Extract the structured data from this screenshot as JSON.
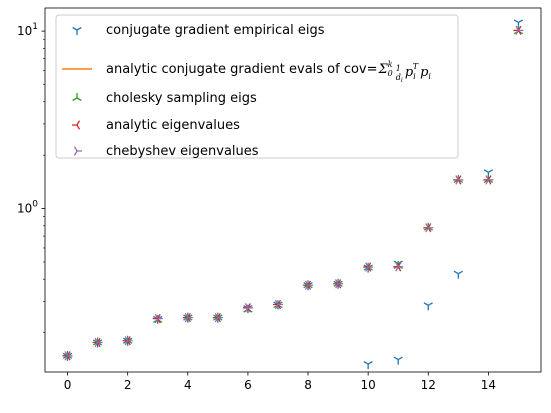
{
  "chart_data": {
    "type": "scatter",
    "title": "",
    "xlabel": "",
    "ylabel": "",
    "xscale": "linear",
    "yscale": "log",
    "xlim": [
      -0.75,
      15.75
    ],
    "ylim": [
      0.12,
      13.5
    ],
    "xticks": [
      0,
      2,
      4,
      6,
      8,
      10,
      12,
      14
    ],
    "xtick_labels": [
      "0",
      "2",
      "4",
      "6",
      "8",
      "10",
      "12",
      "14"
    ],
    "yticks": [
      1,
      10
    ],
    "ytick_labels": [
      "10^0",
      "10^1"
    ],
    "legend_position": "top-left",
    "grid": false,
    "series": [
      {
        "name": "conjugate gradient empirical eigs",
        "marker": "tri_down",
        "color": "#1f77b4",
        "x": [
          0,
          1,
          2,
          3,
          4,
          5,
          6,
          7,
          8,
          9,
          10,
          11,
          12,
          13,
          14,
          15
        ],
        "y": [
          0.148,
          0.176,
          0.18,
          0.239,
          0.243,
          0.243,
          0.275,
          0.288,
          0.37,
          0.377,
          0.465,
          0.49,
          0.285,
          0.43,
          1.6,
          11.2
        ]
      },
      {
        "name": "analytic conjugate gradient evals of cov=Σ_0^k (1/d_i) p_i^T p_i",
        "marker": "line",
        "color": "#ff7f0e",
        "x": [],
        "y": []
      },
      {
        "name": "cholesky sampling eigs",
        "marker": "tri_up",
        "color": "#2ca02c",
        "x": [
          0,
          1,
          2,
          3,
          4,
          5,
          6,
          7,
          8,
          9,
          10,
          11,
          12,
          13,
          14,
          15
        ],
        "y": [
          0.148,
          0.176,
          0.18,
          0.236,
          0.243,
          0.243,
          0.27,
          0.286,
          0.37,
          0.377,
          0.465,
          0.475,
          0.78,
          1.45,
          1.45,
          10.0
        ]
      },
      {
        "name": "analytic eigenvalues",
        "marker": "tri_left",
        "color": "#d62728",
        "x": [
          0,
          1,
          2,
          3,
          4,
          5,
          6,
          7,
          8,
          9,
          10,
          11,
          12,
          13,
          14,
          15
        ],
        "y": [
          0.148,
          0.176,
          0.18,
          0.24,
          0.243,
          0.243,
          0.276,
          0.288,
          0.37,
          0.377,
          0.468,
          0.47,
          0.78,
          1.45,
          1.45,
          10.1
        ]
      },
      {
        "name": "chebyshev eigenvalues",
        "marker": "tri_right",
        "color": "#9467bd",
        "x": [
          0,
          1,
          2,
          3,
          4,
          5,
          6,
          7,
          8,
          9,
          10,
          11,
          12,
          13,
          14,
          15
        ],
        "y": [
          0.148,
          0.176,
          0.18,
          0.24,
          0.243,
          0.243,
          0.276,
          0.288,
          0.37,
          0.377,
          0.468,
          0.47,
          0.78,
          1.45,
          1.45,
          10.1
        ]
      }
    ],
    "extra_points": [
      {
        "series": "conjugate gradient empirical eigs",
        "x": 10,
        "y": 0.133
      },
      {
        "series": "conjugate gradient empirical eigs",
        "x": 11,
        "y": 0.141
      }
    ],
    "legend": {
      "entries": [
        {
          "label": "conjugate gradient empirical eigs",
          "marker": "tri_down",
          "color": "#1f77b4"
        },
        {
          "label_prefix": "analytic conjugate gradient evals of cov=",
          "label_math": "Σ",
          "label_math_tail": "p",
          "marker": "line",
          "color": "#ff7f0e"
        },
        {
          "label": "cholesky sampling eigs",
          "marker": "tri_up",
          "color": "#2ca02c"
        },
        {
          "label": "analytic eigenvalues",
          "marker": "tri_left",
          "color": "#d62728"
        },
        {
          "label": "chebyshev eigenvalues",
          "marker": "tri_right",
          "color": "#9467bd"
        }
      ]
    }
  }
}
